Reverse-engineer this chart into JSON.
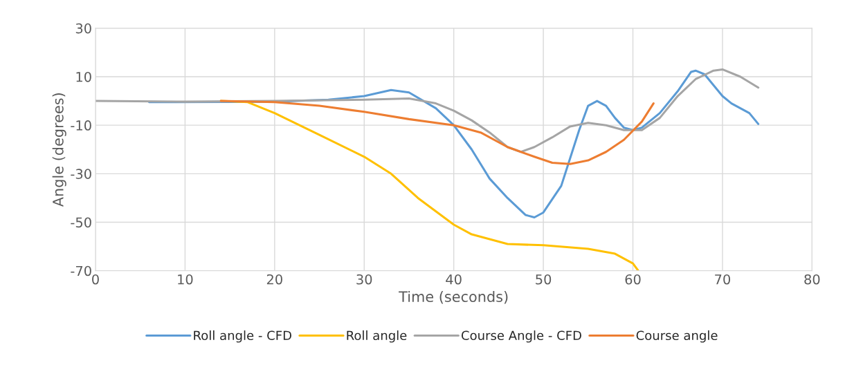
{
  "chart_data": {
    "type": "line",
    "xlabel": "Time (seconds)",
    "ylabel": "Angle (degrees)",
    "xlim": [
      0,
      80
    ],
    "xticks": [
      0,
      10,
      20,
      30,
      40,
      50,
      60,
      70,
      80
    ],
    "ylim": [
      -70,
      30
    ],
    "yticks": [
      -70,
      -50,
      -30,
      -10,
      10,
      30
    ],
    "grid": true,
    "legend": "bottom",
    "marker": "none",
    "line_style": "solid",
    "series": [
      {
        "name": "Roll angle - CFD",
        "color": "#5b9bd5",
        "x": [
          6,
          20,
          26,
          30,
          33,
          35,
          38,
          40,
          42,
          44,
          46,
          48,
          49,
          50,
          52,
          54,
          55,
          56,
          57,
          58,
          59,
          60,
          61,
          63,
          65,
          66.5,
          67,
          68,
          70,
          71,
          72,
          73,
          74
        ],
        "values": [
          -0.5,
          -0.3,
          0.5,
          2,
          4.5,
          3.5,
          -3,
          -10,
          -20,
          -32,
          -40,
          -47,
          -48,
          -46,
          -35,
          -12,
          -2,
          0,
          -2,
          -7,
          -11,
          -12,
          -11,
          -5,
          4,
          12,
          12.5,
          11,
          2,
          -1,
          -3,
          -5,
          -9.5
        ]
      },
      {
        "name": "Roll angle",
        "color": "#ffc000",
        "x": [
          14,
          17,
          20,
          25,
          30,
          33,
          36,
          40,
          42,
          44,
          46,
          50,
          55,
          58,
          60,
          60.6
        ],
        "values": [
          0,
          -0.5,
          -5,
          -14,
          -23,
          -30,
          -40,
          -51,
          -55,
          -57,
          -59,
          -59.5,
          -61,
          -63,
          -67,
          -70
        ]
      },
      {
        "name": "Course Angle - CFD",
        "color": "#a5a5a5",
        "x": [
          0,
          10,
          20,
          30,
          35,
          38,
          40,
          42,
          44,
          46,
          47.5,
          49,
          51,
          53,
          55,
          57,
          59,
          61,
          63,
          65,
          67,
          69,
          70,
          72,
          74
        ],
        "values": [
          0,
          -0.3,
          0,
          0.5,
          1,
          -1,
          -4,
          -8,
          -13,
          -19,
          -21,
          -19,
          -15,
          -10.5,
          -9,
          -10,
          -12,
          -12,
          -7,
          2,
          9,
          12.5,
          13,
          10,
          5.5
        ]
      },
      {
        "name": "Course angle",
        "color": "#ed7d31",
        "x": [
          14,
          20,
          25,
          30,
          35,
          40,
          43,
          46,
          49,
          51,
          53,
          55,
          57,
          59,
          61,
          62.3
        ],
        "values": [
          0,
          -0.5,
          -2,
          -4.5,
          -7.5,
          -10,
          -13,
          -19,
          -23,
          -25.5,
          -26,
          -24.5,
          -21,
          -16,
          -8.5,
          -1
        ]
      }
    ]
  }
}
